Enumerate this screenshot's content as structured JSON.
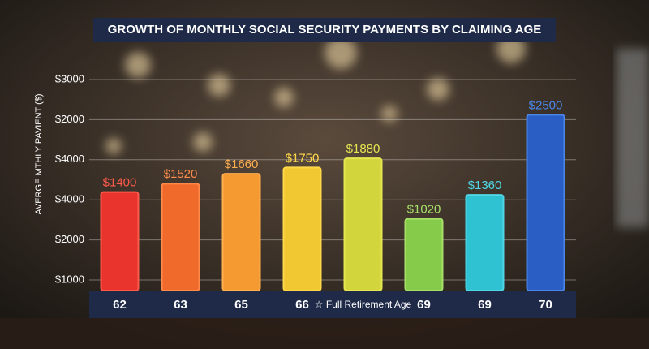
{
  "chart_data": {
    "type": "bar",
    "title": "GROWTH OF MONTHLY SOCIAL SECURITY PAYMENTS BY CLAIMING AGE",
    "y_axis_label": "AVERGE MTHLY PAVIENT ($)",
    "y_axis_labels": [
      "$3000",
      "$2000",
      "$4000",
      "$4000",
      "$2000",
      "$1000"
    ],
    "categories": [
      "62",
      "63",
      "65",
      "66",
      "☆ Full Retirement Age",
      "69",
      "69",
      "70"
    ],
    "values": [
      1400,
      1520,
      1660,
      1750,
      1880,
      1020,
      1360,
      2500
    ],
    "value_labels": [
      "$1400",
      "$1520",
      "$1660",
      "$1750",
      "$1880",
      "$1020",
      "$1360",
      "$2500"
    ],
    "colors": [
      "#e8342c",
      "#f06a2c",
      "#f59a30",
      "#f2c832",
      "#d2d63c",
      "#86cc4a",
      "#2ec2d2",
      "#2a5ec4"
    ],
    "label_colors": [
      "#ff5a4a",
      "#ff8a4a",
      "#ffae50",
      "#ffd84a",
      "#e6e650",
      "#a6e06a",
      "#50d6e6",
      "#4a86e6"
    ],
    "ylim": [
      0,
      3000
    ],
    "grid": true
  }
}
